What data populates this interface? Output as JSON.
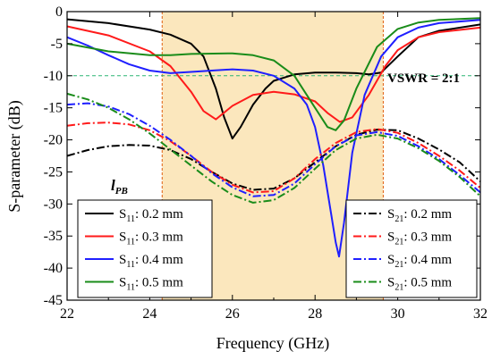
{
  "chart_data": {
    "type": "line",
    "xlabel": "Frequency (GHz)",
    "ylabel": "S-parameter (dB)",
    "xlim": [
      22,
      32
    ],
    "ylim": [
      -45,
      0
    ],
    "xticks": [
      22,
      24,
      26,
      28,
      30,
      32
    ],
    "yticks": [
      0,
      -5,
      -10,
      -15,
      -20,
      -25,
      -30,
      -35,
      -40,
      -45
    ],
    "xtick_labels": [
      "22",
      "24",
      "26",
      "28",
      "30",
      "32"
    ],
    "ytick_labels": [
      "0",
      "-5",
      "-10",
      "-15",
      "-20",
      "-25",
      "-30",
      "-35",
      "-40",
      "-45"
    ],
    "band": {
      "from": 24.3,
      "to": 29.65,
      "color": "#fbe7bd",
      "edge_color": "#e06010"
    },
    "reference_line": {
      "y": -10,
      "color": "#2bb673",
      "label": "VSWR = 2:1"
    },
    "annotation": "l",
    "annotation_sub": "PB",
    "series": [
      {
        "name": "S11: 0.2 mm",
        "legend_main": "S",
        "legend_sub": "11",
        "legend_rest": ": 0.2 mm",
        "color": "#000000",
        "dash": "solid",
        "x": [
          22,
          23,
          24,
          24.5,
          25,
          25.3,
          25.6,
          25.8,
          26,
          26.2,
          26.5,
          26.8,
          27,
          27.5,
          28,
          28.5,
          29,
          29.3,
          29.6,
          30,
          30.5,
          31,
          32
        ],
        "y": [
          -1.2,
          -1.8,
          -2.8,
          -3.6,
          -5,
          -7,
          -12,
          -16.5,
          -19.8,
          -18,
          -14.5,
          -12,
          -10.8,
          -9.8,
          -9.5,
          -9.5,
          -9.6,
          -9.8,
          -9.5,
          -7,
          -4,
          -3,
          -2
        ]
      },
      {
        "name": "S11: 0.3 mm",
        "legend_main": "S",
        "legend_sub": "11",
        "legend_rest": ": 0.3 mm",
        "color": "#ff1a1a",
        "dash": "solid",
        "x": [
          22,
          23,
          24,
          24.5,
          25,
          25.3,
          25.6,
          26,
          26.5,
          27,
          27.5,
          28,
          28.3,
          28.6,
          28.9,
          29.3,
          29.7,
          30,
          30.5,
          31,
          32
        ],
        "y": [
          -2.3,
          -3.7,
          -6.2,
          -8.5,
          -12.5,
          -15.5,
          -16.8,
          -14.7,
          -13,
          -12.5,
          -12.9,
          -14,
          -15.8,
          -17.2,
          -16.5,
          -13,
          -8.5,
          -6,
          -4,
          -3.2,
          -2.5
        ]
      },
      {
        "name": "S11: 0.4 mm",
        "legend_main": "S",
        "legend_sub": "11",
        "legend_rest": ": 0.4 mm",
        "color": "#1f1fff",
        "dash": "solid",
        "x": [
          22,
          22.5,
          23,
          23.5,
          24,
          24.5,
          25,
          25.5,
          26,
          26.5,
          27,
          27.5,
          27.8,
          28,
          28.2,
          28.4,
          28.5,
          28.58,
          28.7,
          28.9,
          29.2,
          29.6,
          30,
          30.5,
          31,
          32
        ],
        "y": [
          -4,
          -5.3,
          -6.8,
          -8.2,
          -9.2,
          -9.6,
          -9.4,
          -9.2,
          -9,
          -9.2,
          -10,
          -12,
          -14.5,
          -18,
          -24,
          -32,
          -36,
          -38.2,
          -33,
          -22,
          -13,
          -7,
          -4,
          -2.5,
          -1.8,
          -1.3
        ]
      },
      {
        "name": "S11: 0.5 mm",
        "legend_main": "S",
        "legend_sub": "11",
        "legend_rest": ": 0.5 mm",
        "color": "#1a8c1a",
        "dash": "solid",
        "x": [
          22,
          23,
          24,
          24.5,
          25,
          26,
          26.5,
          27,
          27.5,
          28,
          28.3,
          28.5,
          28.7,
          29,
          29.5,
          30,
          30.5,
          31,
          32
        ],
        "y": [
          -5,
          -6.2,
          -6.8,
          -6.8,
          -6.6,
          -6.5,
          -6.8,
          -7.6,
          -10,
          -15,
          -18,
          -18.5,
          -17,
          -12,
          -5.5,
          -2.7,
          -1.7,
          -1.3,
          -1
        ]
      },
      {
        "name": "S21: 0.2 mm",
        "legend_main": "S",
        "legend_sub": "21",
        "legend_rest": ": 0.2 mm",
        "color": "#000000",
        "dash": "dashdot",
        "x": [
          22,
          22.5,
          23,
          23.5,
          24,
          24.5,
          25,
          25.5,
          26,
          26.5,
          27,
          27.5,
          28,
          28.5,
          29,
          29.5,
          30,
          30.5,
          31,
          31.5,
          32
        ],
        "y": [
          -22.5,
          -21.6,
          -21,
          -20.8,
          -20.9,
          -21.6,
          -23,
          -25,
          -26.8,
          -27.8,
          -27.6,
          -26,
          -23.5,
          -21,
          -19.2,
          -18.4,
          -18.5,
          -19.8,
          -21.5,
          -23.5,
          -26.5
        ]
      },
      {
        "name": "S21: 0.3 mm",
        "legend_main": "S",
        "legend_sub": "21",
        "legend_rest": ": 0.3 mm",
        "color": "#ff1a1a",
        "dash": "dashdot",
        "x": [
          22,
          22.5,
          23,
          23.5,
          24,
          24.5,
          25,
          25.5,
          26,
          26.5,
          27,
          27.5,
          28,
          28.5,
          29,
          29.5,
          30,
          30.5,
          31,
          31.5,
          32
        ],
        "y": [
          -17.8,
          -17.4,
          -17.3,
          -17.6,
          -18.5,
          -20.2,
          -22.5,
          -25,
          -27,
          -28.2,
          -28,
          -26,
          -23,
          -20.5,
          -18.8,
          -18.3,
          -18.9,
          -20.5,
          -22.5,
          -24.8,
          -27.5
        ]
      },
      {
        "name": "S21: 0.4 mm",
        "legend_main": "S",
        "legend_sub": "21",
        "legend_rest": ": 0.4 mm",
        "color": "#1f1fff",
        "dash": "dashdot",
        "x": [
          22,
          22.5,
          23,
          23.5,
          24,
          24.5,
          25,
          25.5,
          26,
          26.5,
          27,
          27.5,
          28,
          28.5,
          29,
          29.5,
          30,
          30.5,
          31,
          31.5,
          32
        ],
        "y": [
          -14.5,
          -14.3,
          -14.8,
          -16,
          -17.8,
          -20,
          -22.5,
          -25.2,
          -27.4,
          -28.8,
          -28.6,
          -26.8,
          -23.8,
          -21,
          -19.3,
          -18.8,
          -19.4,
          -21,
          -23,
          -25.5,
          -28.2
        ]
      },
      {
        "name": "S21: 0.5 mm",
        "legend_main": "S",
        "legend_sub": "21",
        "legend_rest": ": 0.5 mm",
        "color": "#1a8c1a",
        "dash": "dashdot",
        "x": [
          22,
          22.5,
          23,
          23.5,
          24,
          24.5,
          25,
          25.5,
          26,
          26.5,
          27,
          27.5,
          28,
          28.5,
          29,
          29.5,
          30,
          30.5,
          31,
          31.5,
          32
        ],
        "y": [
          -12.8,
          -13.7,
          -15,
          -16.8,
          -19,
          -21.5,
          -24,
          -26.5,
          -28.6,
          -29.8,
          -29.4,
          -27.5,
          -24.5,
          -21.6,
          -19.8,
          -19.2,
          -19.8,
          -21.3,
          -23.3,
          -25.8,
          -28.8
        ]
      }
    ]
  }
}
